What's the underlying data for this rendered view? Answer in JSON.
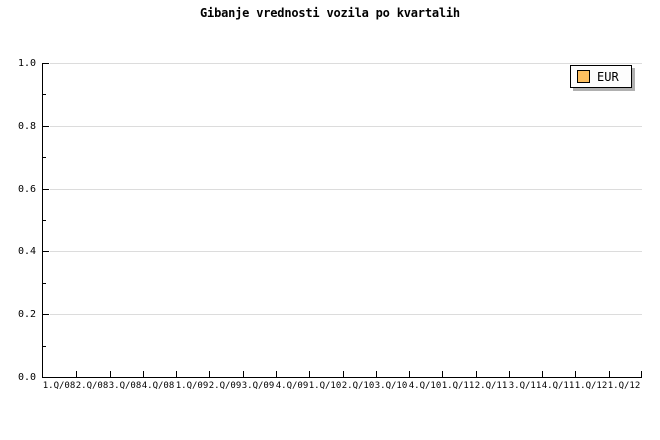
{
  "chart_data": {
    "type": "line",
    "title": "Gibanje vrednosti vozila po kvartalih",
    "categories": [
      "1.Q/08",
      "2.Q/08",
      "3.Q/08",
      "4.Q/08",
      "1.Q/09",
      "2.Q/09",
      "3.Q/09",
      "4.Q/09",
      "1.Q/10",
      "2.Q/10",
      "3.Q/10",
      "4.Q/10",
      "1.Q/11",
      "2.Q/11",
      "3.Q/11",
      "4.Q/11",
      "1.Q/12",
      "1.Q/12"
    ],
    "series": [
      {
        "name": "EUR",
        "values": []
      }
    ],
    "xlabel": "",
    "ylabel": "",
    "ylim": [
      0.0,
      1.0
    ],
    "yticks": [
      "0.0",
      "0.2",
      "0.4",
      "0.6",
      "0.8",
      "1.0"
    ],
    "y_minor_tick_step": 0.1,
    "grid": true,
    "legend_position": "top-right",
    "plot_empty": true
  },
  "colors": {
    "series_eur": "#fdbf5f",
    "grid": "#dcdcdc",
    "axis": "#000000",
    "background": "#ffffff",
    "legend_background": "#fdfdfd",
    "legend_shadow": "#b0b0b0"
  }
}
